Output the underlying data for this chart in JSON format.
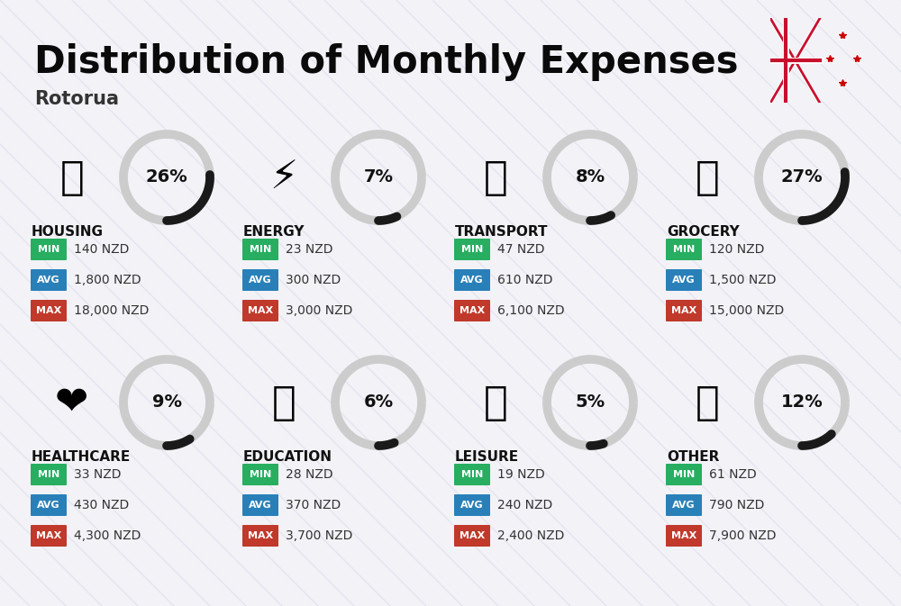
{
  "title": "Distribution of Monthly Expenses",
  "subtitle": "Rotorua",
  "bg_color": "#f2f2f7",
  "categories": [
    {
      "name": "HOUSING",
      "pct": 26,
      "min": "140 NZD",
      "avg": "1,800 NZD",
      "max": "18,000 NZD",
      "icon_emoji": "🏗️",
      "row": 0,
      "col": 0
    },
    {
      "name": "ENERGY",
      "pct": 7,
      "min": "23 NZD",
      "avg": "300 NZD",
      "max": "3,000 NZD",
      "icon_emoji": "⚡",
      "row": 0,
      "col": 1
    },
    {
      "name": "TRANSPORT",
      "pct": 8,
      "min": "47 NZD",
      "avg": "610 NZD",
      "max": "6,100 NZD",
      "icon_emoji": "🚌",
      "row": 0,
      "col": 2
    },
    {
      "name": "GROCERY",
      "pct": 27,
      "min": "120 NZD",
      "avg": "1,500 NZD",
      "max": "15,000 NZD",
      "icon_emoji": "🛒",
      "row": 0,
      "col": 3
    },
    {
      "name": "HEALTHCARE",
      "pct": 9,
      "min": "33 NZD",
      "avg": "430 NZD",
      "max": "4,300 NZD",
      "icon_emoji": "❤️",
      "row": 1,
      "col": 0
    },
    {
      "name": "EDUCATION",
      "pct": 6,
      "min": "28 NZD",
      "avg": "370 NZD",
      "max": "3,700 NZD",
      "icon_emoji": "🎓",
      "row": 1,
      "col": 1
    },
    {
      "name": "LEISURE",
      "pct": 5,
      "min": "19 NZD",
      "avg": "240 NZD",
      "max": "2,400 NZD",
      "icon_emoji": "🛍️",
      "row": 1,
      "col": 2
    },
    {
      "name": "OTHER",
      "pct": 12,
      "min": "61 NZD",
      "avg": "790 NZD",
      "max": "7,900 NZD",
      "icon_emoji": "💛",
      "row": 1,
      "col": 3
    }
  ],
  "label_colors": {
    "MIN": "#27ae60",
    "AVG": "#2980b9",
    "MAX": "#c0392b"
  },
  "ring_bg_color": "#cccccc",
  "ring_fg_color": "#1a1a1a",
  "title_fontsize": 30,
  "subtitle_fontsize": 15,
  "category_fontsize": 11,
  "value_fontsize": 10,
  "pct_fontsize": 14,
  "badge_fontsize": 8,
  "icon_fontsize": 32,
  "stripe_color": "#dcdcec",
  "stripe_alpha": 0.6
}
